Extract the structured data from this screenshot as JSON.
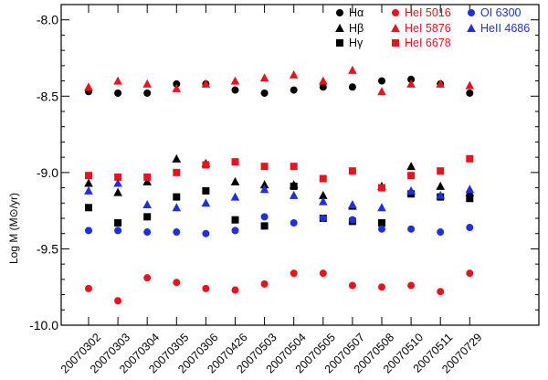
{
  "chart_data": {
    "type": "scatter",
    "title": "",
    "xlabel": "",
    "ylabel": "Log M (M⊙/yr)",
    "ylim": [
      -10.0,
      -7.9
    ],
    "yticks": [
      -10.0,
      -9.5,
      -9.0,
      -8.5,
      -8.0
    ],
    "ytick_labels": [
      "-10.0",
      "-9.5",
      "-9.0",
      "-8.5",
      "-8.0"
    ],
    "categories": [
      "20070302",
      "20070303",
      "20070304",
      "20070305",
      "20070306",
      "20070426",
      "20070503",
      "20070504",
      "20070505",
      "20070507",
      "20070508",
      "20070510",
      "20070511",
      "20070729"
    ],
    "grid": false,
    "legend_position": "top-right",
    "series": [
      {
        "name": "Hα",
        "marker": "circle",
        "color": "#000000",
        "values": [
          -8.47,
          -8.48,
          -8.48,
          -8.42,
          -8.42,
          -8.46,
          -8.48,
          -8.46,
          -8.44,
          -8.44,
          -8.4,
          -8.39,
          -8.42,
          -8.48
        ]
      },
      {
        "name": "Hβ",
        "marker": "triangle",
        "color": "#000000",
        "values": [
          -9.07,
          -9.13,
          -9.06,
          -8.91,
          -8.94,
          -9.06,
          -9.08,
          -9.08,
          -9.15,
          -9.22,
          -9.09,
          -8.96,
          -9.09,
          -9.13
        ]
      },
      {
        "name": "Hγ",
        "marker": "square",
        "color": "#000000",
        "values": [
          -9.23,
          -9.33,
          -9.29,
          -9.16,
          -9.12,
          -9.31,
          -9.35,
          -9.09,
          -9.3,
          -9.32,
          -9.33,
          -9.14,
          -9.16,
          -9.17
        ]
      },
      {
        "name": "HeI 5016",
        "marker": "circle",
        "color": "#e8141b",
        "values": [
          -9.76,
          -9.84,
          -9.69,
          -9.72,
          -9.76,
          -9.77,
          -9.73,
          -9.66,
          -9.66,
          -9.74,
          -9.75,
          -9.74,
          -9.78,
          -9.66
        ]
      },
      {
        "name": "HeI 5876",
        "marker": "triangle",
        "color": "#e8141b",
        "values": [
          -8.44,
          -8.4,
          -8.42,
          -8.45,
          -8.42,
          -8.4,
          -8.38,
          -8.36,
          -8.4,
          -8.33,
          -8.47,
          -8.42,
          -8.42,
          -8.43
        ]
      },
      {
        "name": "HeI 6678",
        "marker": "square",
        "color": "#e8141b",
        "values": [
          -9.02,
          -9.03,
          -9.03,
          -9.0,
          -8.95,
          -8.93,
          -8.96,
          -8.96,
          -9.04,
          -8.99,
          -9.1,
          -9.02,
          -8.99,
          -8.91
        ]
      },
      {
        "name": "OI 6300",
        "marker": "circle",
        "color": "#1f2fe0",
        "values": [
          -9.38,
          -9.38,
          -9.39,
          -9.39,
          -9.4,
          -9.38,
          -9.29,
          -9.33,
          -9.3,
          -9.31,
          -9.37,
          -9.37,
          -9.39,
          -9.36
        ]
      },
      {
        "name": "HeII 4686",
        "marker": "triangle",
        "color": "#1f2fe0",
        "values": [
          -9.12,
          -9.07,
          -9.21,
          -9.23,
          -9.2,
          -9.16,
          -9.11,
          -9.15,
          -9.19,
          -9.21,
          -9.23,
          -9.12,
          -9.15,
          -9.11
        ]
      }
    ]
  }
}
